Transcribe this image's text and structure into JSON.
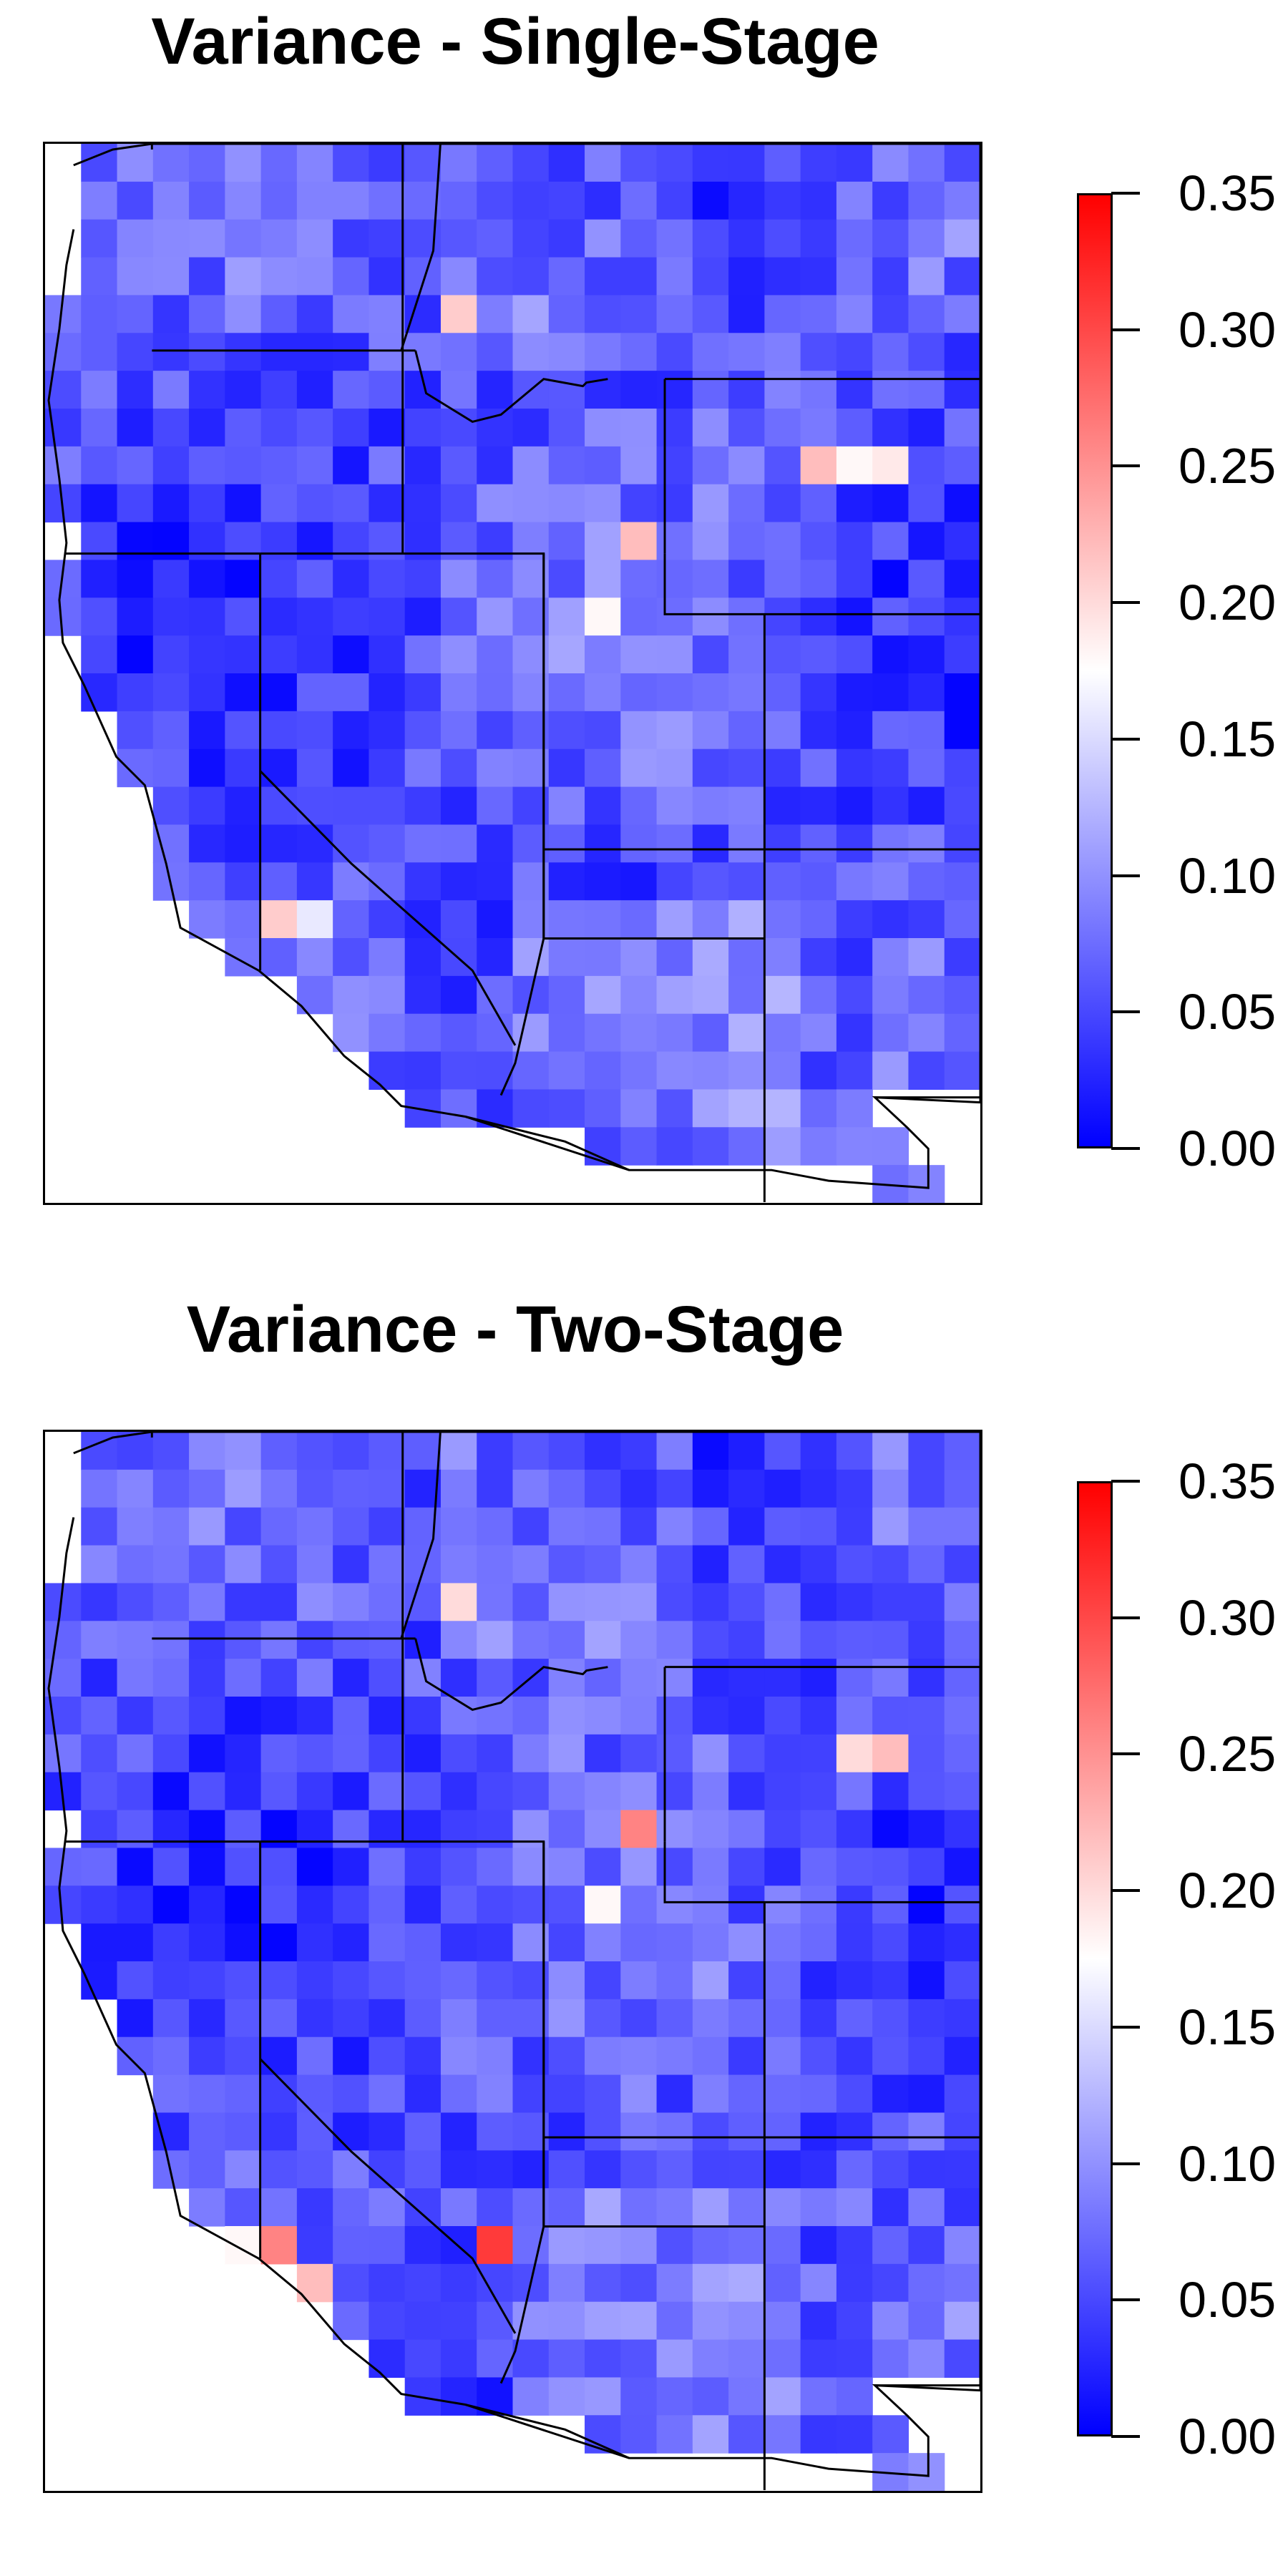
{
  "panels": [
    {
      "title": "Variance - Single-Stage",
      "seed": 17,
      "hotspots": [
        {
          "col": 11,
          "row": 4,
          "value": 0.21
        },
        {
          "col": 21,
          "row": 8,
          "value": 0.22
        },
        {
          "col": 22,
          "row": 8,
          "value": 0.18
        },
        {
          "col": 23,
          "row": 8,
          "value": 0.19
        },
        {
          "col": 16,
          "row": 10,
          "value": 0.22
        },
        {
          "col": 6,
          "row": 20,
          "value": 0.21
        },
        {
          "col": 7,
          "row": 20,
          "value": 0.16
        },
        {
          "col": 15,
          "row": 12,
          "value": 0.18
        }
      ]
    },
    {
      "title": "Variance - Two-Stage",
      "seed": 53,
      "hotspots": [
        {
          "col": 11,
          "row": 4,
          "value": 0.2
        },
        {
          "col": 22,
          "row": 8,
          "value": 0.2
        },
        {
          "col": 23,
          "row": 8,
          "value": 0.22
        },
        {
          "col": 16,
          "row": 10,
          "value": 0.26
        },
        {
          "col": 6,
          "row": 21,
          "value": 0.26
        },
        {
          "col": 5,
          "row": 21,
          "value": 0.18
        },
        {
          "col": 7,
          "row": 22,
          "value": 0.22
        },
        {
          "col": 12,
          "row": 21,
          "value": 0.31
        },
        {
          "col": 15,
          "row": 12,
          "value": 0.18
        }
      ]
    }
  ],
  "legend": {
    "min": 0,
    "max": 0.35,
    "ticks": [
      "0.00",
      "0.05",
      "0.10",
      "0.15",
      "0.20",
      "0.25",
      "0.30",
      "0.35"
    ],
    "colors": {
      "low": "#0000ff",
      "mid": "#ffffff",
      "high": "#ff0000"
    }
  }
}
